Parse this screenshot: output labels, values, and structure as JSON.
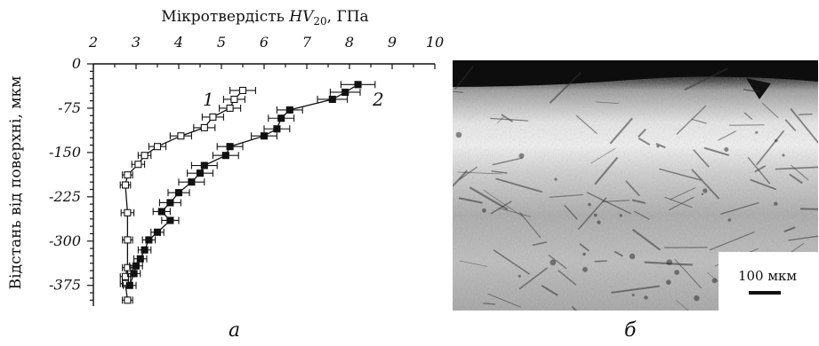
{
  "chart_data": {
    "type": "line",
    "title": "Мікротвердість HV20, ГПа",
    "title_parts": {
      "prefix": "Мікротвердість ",
      "symbol": "HV",
      "subscript": "20",
      "suffix": ", ГПа"
    },
    "xlabel": "Мікротвердість HV20, ГПа",
    "ylabel": "Відстань від поверхні, мкм",
    "x_axis_position": "top",
    "xlim": [
      2,
      10
    ],
    "ylim": [
      -410,
      0
    ],
    "x_ticks": [
      "2",
      "3",
      "4",
      "5",
      "6",
      "7",
      "8",
      "9",
      "10"
    ],
    "y_ticks": [
      "0",
      "-75",
      "-150",
      "-225",
      "-300",
      "-375"
    ],
    "grid": false,
    "series": [
      {
        "name": "1",
        "marker": "open-square",
        "x": [
          5.5,
          5.3,
          5.2,
          4.8,
          4.6,
          4.05,
          3.5,
          3.2,
          3.05,
          2.8,
          2.75,
          2.8,
          2.8,
          2.8,
          2.75,
          2.75,
          2.8
        ],
        "y": [
          -45,
          -60,
          -75,
          -90,
          -108,
          -122,
          -140,
          -155,
          -170,
          -188,
          -205,
          -252,
          -298,
          -345,
          -360,
          -372,
          -400
        ],
        "xerr": [
          0.3,
          0.25,
          0.25,
          0.25,
          0.25,
          0.25,
          0.2,
          0.15,
          0.15,
          0.12,
          0.12,
          0.15,
          0.12,
          0.12,
          0.12,
          0.12,
          0.12
        ]
      },
      {
        "name": "2",
        "marker": "filled-square",
        "x": [
          8.2,
          7.9,
          7.6,
          6.6,
          6.4,
          6.3,
          6.0,
          5.2,
          5.1,
          4.6,
          4.5,
          4.3,
          4.0,
          3.8,
          3.6,
          3.8,
          3.5,
          3.3,
          3.2,
          3.1,
          3.0,
          2.95,
          2.85
        ],
        "y": [
          -35,
          -48,
          -60,
          -78,
          -92,
          -110,
          -122,
          -140,
          -155,
          -172,
          -185,
          -200,
          -218,
          -235,
          -250,
          -265,
          -285,
          -298,
          -315,
          -330,
          -342,
          -355,
          -375
        ],
        "xerr": [
          0.4,
          0.35,
          0.35,
          0.3,
          0.3,
          0.3,
          0.3,
          0.3,
          0.3,
          0.3,
          0.3,
          0.3,
          0.25,
          0.25,
          0.2,
          0.2,
          0.15,
          0.15,
          0.15,
          0.15,
          0.15,
          0.15,
          0.15
        ]
      }
    ]
  },
  "series_labels": [
    "1",
    "2"
  ],
  "panel_labels": {
    "left": "а",
    "right": "б"
  },
  "micrograph": {
    "scale_label": "100 мкм"
  }
}
